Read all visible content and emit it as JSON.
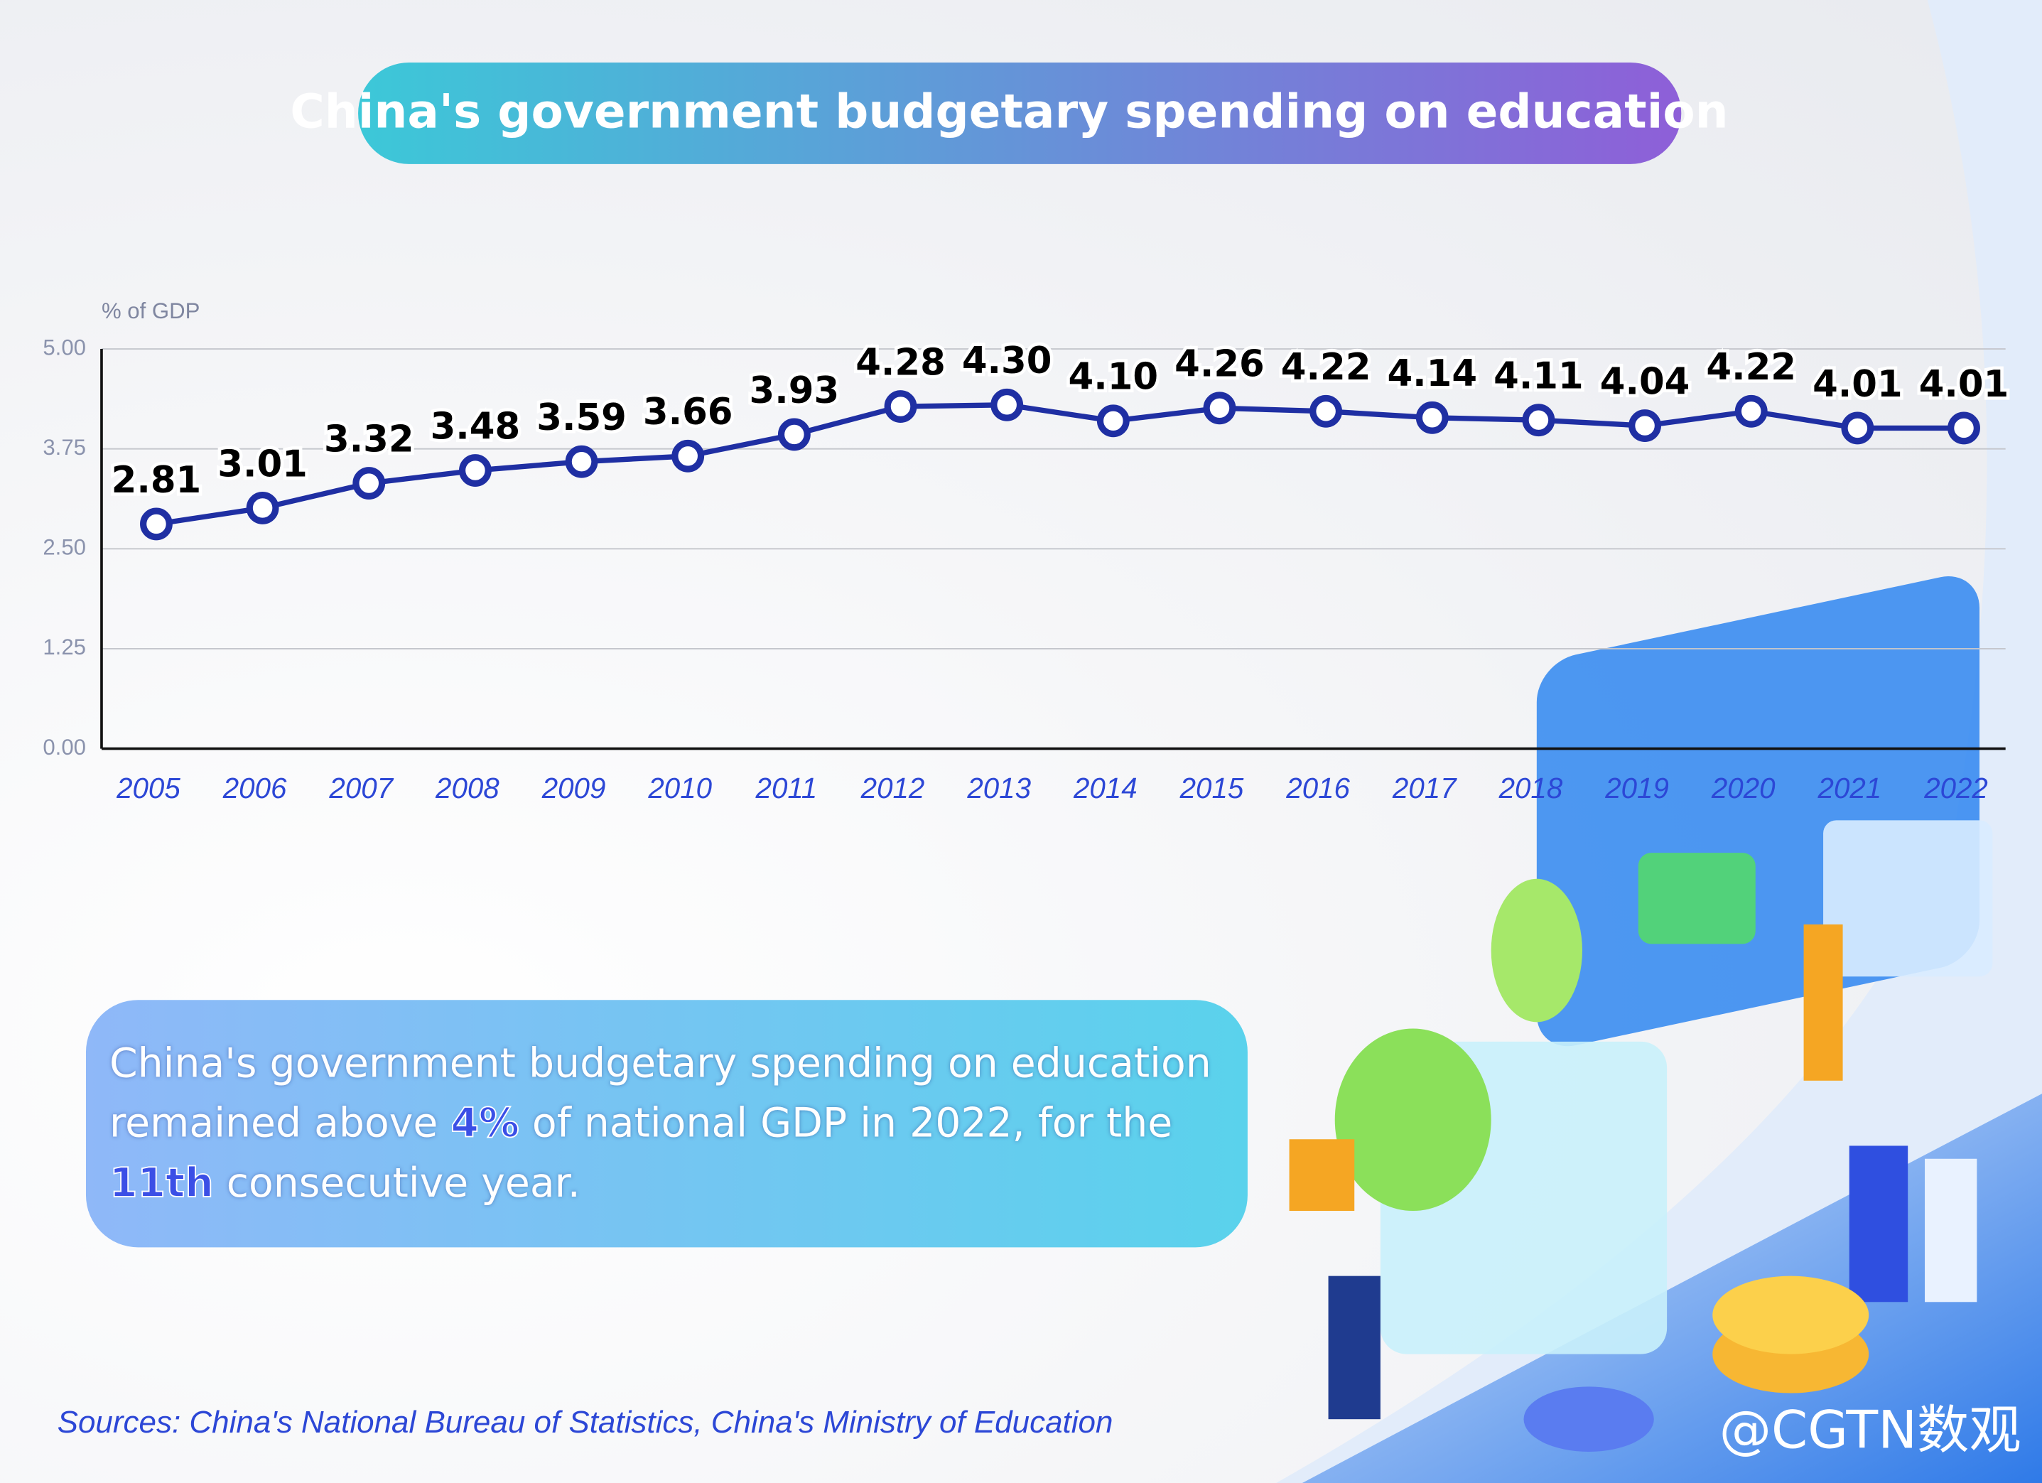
{
  "chart_data": {
    "type": "line",
    "title": "China's government budgetary spending on education",
    "y_label": "% of GDP",
    "categories": [
      "2005",
      "2006",
      "2007",
      "2008",
      "2009",
      "2010",
      "2011",
      "2012",
      "2013",
      "2014",
      "2015",
      "2016",
      "2017",
      "2018",
      "2019",
      "2020",
      "2021",
      "2022"
    ],
    "series": [
      {
        "name": "Budgetary spending on education",
        "color": "#1f2fa3",
        "values": [
          2.81,
          3.01,
          3.32,
          3.48,
          3.59,
          3.66,
          3.93,
          4.28,
          4.3,
          4.1,
          4.26,
          4.22,
          4.14,
          4.11,
          4.04,
          4.22,
          4.01,
          4.01
        ],
        "value_labels": [
          "2.81",
          "3.01",
          "3.32",
          "3.48",
          "3.59",
          "3.66",
          "3.93",
          "4.28",
          "4.30",
          "4.10",
          "4.26",
          "4.22",
          "4.14",
          "4.11",
          "4.04",
          "4.22",
          "4.01",
          "4.01"
        ]
      }
    ],
    "ylim": [
      0,
      5
    ],
    "yticks": [
      {
        "value": 0,
        "label": "0.00"
      },
      {
        "value": 1.25,
        "label": "1.25"
      },
      {
        "value": 2.5,
        "label": "2.50"
      },
      {
        "value": 3.75,
        "label": "3.75"
      },
      {
        "value": 5,
        "label": "5.00"
      }
    ],
    "grid": true,
    "annotation": [
      {
        "text": "China's government budgetary spending on education remained above "
      },
      {
        "text": "4%",
        "color": "#3b4fe6"
      },
      {
        "text": " of national GDP in 2022, for the "
      },
      {
        "text": "11th",
        "color": "#3b4fe6"
      },
      {
        "text": " consecutive year."
      }
    ],
    "source": "Sources: China's National Bureau of Statistics, China's Ministry of Education",
    "watermark": "@CGTN数观"
  }
}
